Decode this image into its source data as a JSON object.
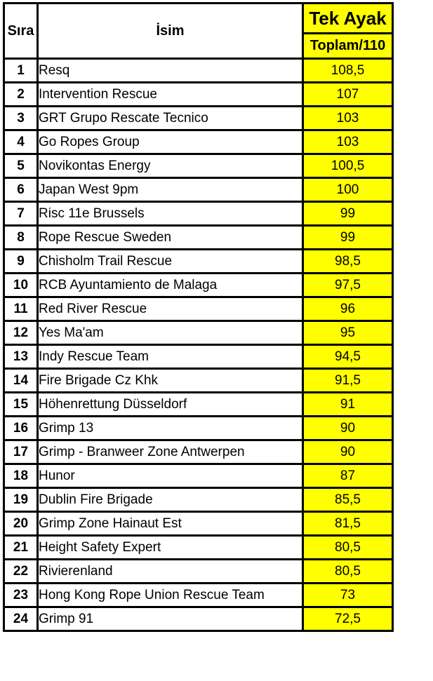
{
  "colors": {
    "highlight_yellow": "#ffff00",
    "border_black": "#000000",
    "text_black": "#000000",
    "background_white": "#ffffff"
  },
  "table": {
    "columns": {
      "rank": "Sıra",
      "name": "İsim",
      "score_group": "Tek Ayak",
      "score_sub": "Toplam/110"
    },
    "rows": [
      {
        "rank": "1",
        "name": "Resq",
        "score": "108,5"
      },
      {
        "rank": "2",
        "name": "Intervention Rescue",
        "score": "107"
      },
      {
        "rank": "3",
        "name": "GRT Grupo Rescate Tecnico",
        "score": "103"
      },
      {
        "rank": "4",
        "name": "Go Ropes Group",
        "score": "103"
      },
      {
        "rank": "5",
        "name": "Novikontas Energy",
        "score": "100,5"
      },
      {
        "rank": "6",
        "name": "Japan West 9pm",
        "score": "100"
      },
      {
        "rank": "7",
        "name": "Risc 11e Brussels",
        "score": "99"
      },
      {
        "rank": "8",
        "name": "Rope Rescue Sweden",
        "score": "99"
      },
      {
        "rank": "9",
        "name": "Chisholm Trail Rescue",
        "score": "98,5"
      },
      {
        "rank": "10",
        "name": "RCB Ayuntamiento de Malaga",
        "score": "97,5"
      },
      {
        "rank": "11",
        "name": "Red River Rescue",
        "score": "96"
      },
      {
        "rank": "12",
        "name": "Yes Ma'am",
        "score": "95"
      },
      {
        "rank": "13",
        "name": "Indy Rescue Team",
        "score": "94,5"
      },
      {
        "rank": "14",
        "name": "Fire Brigade Cz Khk",
        "score": "91,5"
      },
      {
        "rank": "15",
        "name": "Höhenrettung Düsseldorf",
        "score": "91"
      },
      {
        "rank": "16",
        "name": "Grimp 13",
        "score": "90"
      },
      {
        "rank": "17",
        "name": "Grimp - Branweer Zone Antwerpen",
        "score": "90"
      },
      {
        "rank": "18",
        "name": "Hunor",
        "score": "87"
      },
      {
        "rank": "19",
        "name": "Dublin Fire Brigade",
        "score": "85,5"
      },
      {
        "rank": "20",
        "name": "Grimp Zone Hainaut Est",
        "score": "81,5"
      },
      {
        "rank": "21",
        "name": "Height Safety Expert",
        "score": "80,5"
      },
      {
        "rank": "22",
        "name": "Rivierenland",
        "score": "80,5"
      },
      {
        "rank": "23",
        "name": "Hong Kong Rope Union Rescue Team",
        "score": "73"
      },
      {
        "rank": "24",
        "name": "Grimp 91",
        "score": "72,5"
      }
    ]
  }
}
